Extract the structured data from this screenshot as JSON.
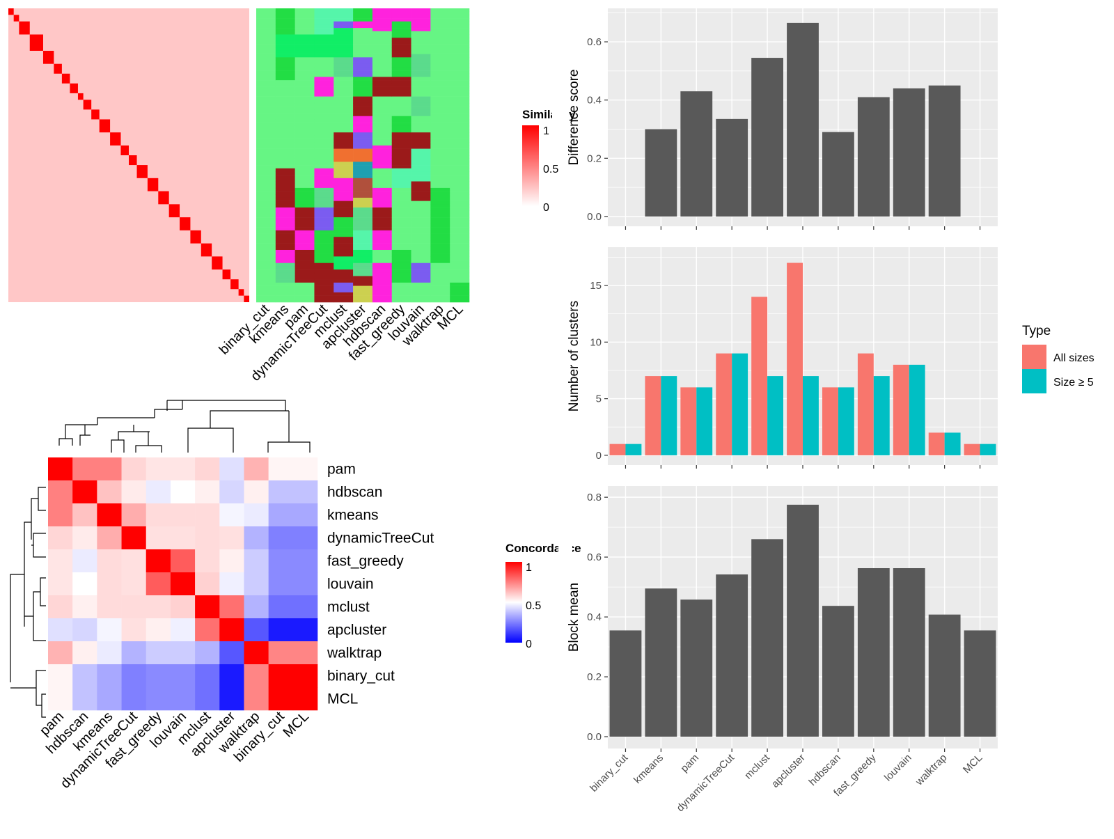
{
  "colors": {
    "sim_high": "#ff0000",
    "sim_low": "#ffffff",
    "conc_high": "#ff0000",
    "conc_mid": "#ffffff",
    "conc_low": "#0000ff",
    "panel_bg": "#ebebeb",
    "grid": "#ffffff",
    "bar": "#595959",
    "all_sizes": "#f8766d",
    "size_ge5": "#00bfc4",
    "class_default": "#66f584"
  },
  "class_palette": [
    "#66f584",
    "#22dd44",
    "#ff22dd",
    "#9b1a1a",
    "#5bdb8c",
    "#7b5cf0",
    "#ccd050",
    "#1ea0b0",
    "#b0503c",
    "#f07030",
    "#11ee66",
    "#55f5aa"
  ],
  "similarity_heatmap": {
    "legend_title": "Similarity",
    "legend_ticks": [
      "1",
      "0.5",
      "0"
    ],
    "column_labels": [
      "binary_cut",
      "kmeans",
      "pam",
      "dynamicTreeCut",
      "mclust",
      "apcluster",
      "hdbscan",
      "fast_greedy",
      "louvain",
      "walktrap",
      "MCL"
    ],
    "diagonal_blocks": [
      1,
      1,
      1,
      1,
      1,
      1,
      1,
      1,
      1,
      1,
      1,
      1,
      1,
      1,
      1,
      1,
      1,
      1,
      1,
      1,
      1,
      1,
      1,
      1,
      1,
      1,
      1,
      1,
      1,
      1,
      1,
      1,
      1,
      1,
      1,
      1,
      1,
      1,
      1,
      1,
      1,
      1,
      1,
      1,
      1,
      1,
      1,
      1,
      1,
      1,
      1,
      1,
      1,
      1,
      1,
      1,
      1,
      1,
      1,
      1,
      1,
      1,
      1,
      1,
      1,
      1,
      1,
      1,
      1,
      1,
      1,
      1,
      1,
      1,
      1,
      1,
      1,
      1,
      1,
      1,
      1,
      1,
      1,
      1,
      1,
      1,
      1,
      1,
      1,
      1
    ],
    "class_columns": [
      [
        0,
        0,
        0,
        0,
        0,
        0,
        0,
        0,
        0,
        0,
        0,
        0,
        0,
        0,
        0,
        0,
        0,
        0,
        0,
        0,
        0,
        0,
        0,
        0,
        0,
        0,
        0,
        0,
        0,
        0,
        0,
        0,
        0,
        0,
        0,
        0,
        0,
        0,
        0,
        0,
        0,
        0,
        0,
        0,
        0,
        0,
        0,
        0,
        0,
        0,
        0,
        0,
        0,
        0,
        0,
        0,
        0,
        0,
        0,
        0,
        0,
        0,
        0,
        0,
        0,
        0,
        0,
        0,
        0,
        0,
        0,
        0,
        0,
        0,
        0,
        0,
        0,
        0,
        0,
        0,
        0,
        0,
        0,
        0,
        0,
        0,
        0,
        0,
        0,
        0
      ],
      [
        1,
        1,
        1,
        1,
        1,
        1,
        1,
        1,
        10,
        10,
        10,
        10,
        10,
        10,
        10,
        1,
        1,
        1,
        1,
        1,
        1,
        1,
        0,
        0,
        0,
        0,
        0,
        0,
        0,
        0,
        0,
        0,
        0,
        0,
        0,
        0,
        0,
        0,
        0,
        0,
        0,
        0,
        0,
        0,
        0,
        0,
        0,
        0,
        0,
        3,
        3,
        3,
        3,
        3,
        3,
        3,
        3,
        3,
        3,
        3,
        3,
        2,
        2,
        2,
        2,
        2,
        2,
        2,
        3,
        3,
        3,
        3,
        3,
        3,
        2,
        2,
        2,
        2,
        4,
        4,
        4,
        4,
        4,
        4,
        0,
        0,
        0,
        0,
        0,
        0
      ],
      [
        0,
        0,
        0,
        0,
        0,
        0,
        0,
        0,
        10,
        10,
        10,
        10,
        10,
        10,
        10,
        0,
        0,
        0,
        0,
        0,
        0,
        0,
        0,
        0,
        0,
        0,
        0,
        0,
        0,
        0,
        0,
        0,
        0,
        0,
        0,
        0,
        0,
        0,
        0,
        0,
        0,
        0,
        0,
        0,
        0,
        0,
        0,
        0,
        0,
        0,
        0,
        0,
        0,
        0,
        0,
        1,
        1,
        1,
        1,
        1,
        1,
        3,
        3,
        3,
        3,
        3,
        3,
        3,
        2,
        2,
        2,
        2,
        2,
        2,
        3,
        3,
        3,
        3,
        3,
        3,
        3,
        3,
        3,
        3,
        0,
        0,
        0,
        0,
        0,
        0
      ],
      [
        11,
        11,
        11,
        11,
        11,
        11,
        11,
        11,
        10,
        10,
        10,
        10,
        10,
        10,
        10,
        0,
        0,
        0,
        0,
        0,
        0,
        2,
        2,
        2,
        2,
        2,
        2,
        0,
        0,
        0,
        0,
        0,
        0,
        0,
        0,
        0,
        0,
        0,
        0,
        0,
        0,
        0,
        0,
        0,
        0,
        0,
        0,
        0,
        0,
        2,
        2,
        2,
        2,
        2,
        2,
        4,
        4,
        4,
        4,
        4,
        4,
        5,
        5,
        5,
        5,
        5,
        5,
        5,
        1,
        1,
        1,
        1,
        1,
        1,
        1,
        1,
        1,
        1,
        3,
        3,
        3,
        3,
        3,
        3,
        3,
        3,
        3,
        3,
        3,
        3
      ],
      [
        11,
        11,
        11,
        11,
        5,
        5,
        10,
        10,
        10,
        10,
        10,
        10,
        10,
        10,
        10,
        4,
        4,
        4,
        4,
        4,
        4,
        0,
        0,
        0,
        0,
        0,
        0,
        0,
        0,
        0,
        0,
        0,
        0,
        0,
        0,
        0,
        0,
        0,
        3,
        3,
        3,
        3,
        3,
        9,
        9,
        9,
        9,
        6,
        6,
        6,
        6,
        6,
        2,
        2,
        2,
        2,
        2,
        2,
        2,
        3,
        3,
        3,
        3,
        3,
        1,
        1,
        1,
        1,
        1,
        1,
        3,
        3,
        3,
        3,
        3,
        3,
        10,
        10,
        10,
        10,
        3,
        3,
        3,
        3,
        5,
        5,
        5,
        3,
        3,
        3
      ],
      [
        1,
        1,
        1,
        1,
        2,
        2,
        0,
        0,
        0,
        0,
        0,
        0,
        0,
        0,
        0,
        5,
        5,
        5,
        5,
        5,
        5,
        1,
        1,
        1,
        1,
        1,
        1,
        3,
        3,
        3,
        3,
        3,
        3,
        2,
        2,
        2,
        2,
        2,
        5,
        5,
        5,
        5,
        5,
        9,
        9,
        9,
        9,
        7,
        7,
        7,
        7,
        7,
        8,
        8,
        8,
        8,
        8,
        8,
        6,
        6,
        6,
        4,
        4,
        4,
        4,
        4,
        4,
        4,
        11,
        11,
        11,
        11,
        11,
        11,
        10,
        10,
        10,
        10,
        4,
        4,
        4,
        4,
        3,
        3,
        3,
        6,
        6,
        6,
        6,
        6
      ],
      [
        2,
        2,
        2,
        2,
        2,
        2,
        2,
        0,
        0,
        0,
        0,
        0,
        0,
        0,
        0,
        0,
        0,
        0,
        0,
        0,
        0,
        3,
        3,
        3,
        3,
        3,
        3,
        0,
        0,
        0,
        0,
        0,
        0,
        0,
        0,
        0,
        0,
        0,
        0,
        0,
        0,
        0,
        2,
        2,
        2,
        2,
        2,
        2,
        2,
        0,
        0,
        0,
        0,
        0,
        0,
        2,
        2,
        2,
        2,
        2,
        2,
        3,
        3,
        3,
        3,
        3,
        3,
        3,
        2,
        2,
        2,
        2,
        2,
        2,
        0,
        0,
        0,
        0,
        2,
        2,
        2,
        2,
        2,
        2,
        2,
        2,
        2,
        2,
        2,
        2
      ],
      [
        2,
        2,
        2,
        2,
        1,
        1,
        1,
        1,
        1,
        3,
        3,
        3,
        3,
        3,
        3,
        1,
        1,
        1,
        1,
        1,
        1,
        3,
        3,
        3,
        3,
        3,
        3,
        0,
        0,
        0,
        0,
        0,
        0,
        1,
        1,
        1,
        1,
        1,
        3,
        3,
        3,
        3,
        3,
        3,
        3,
        3,
        3,
        3,
        3,
        11,
        11,
        11,
        11,
        11,
        11,
        0,
        0,
        0,
        0,
        0,
        0,
        0,
        0,
        0,
        0,
        0,
        0,
        0,
        0,
        0,
        0,
        0,
        0,
        0,
        1,
        1,
        1,
        1,
        1,
        1,
        1,
        1,
        1,
        1,
        0,
        0,
        0,
        0,
        0,
        0
      ],
      [
        2,
        2,
        2,
        2,
        2,
        2,
        2,
        0,
        0,
        0,
        0,
        0,
        0,
        0,
        4,
        4,
        4,
        4,
        4,
        4,
        4,
        0,
        0,
        0,
        0,
        0,
        0,
        4,
        4,
        4,
        4,
        4,
        4,
        0,
        0,
        0,
        0,
        0,
        3,
        3,
        3,
        3,
        3,
        11,
        11,
        11,
        11,
        11,
        11,
        11,
        11,
        11,
        11,
        3,
        3,
        3,
        3,
        3,
        3,
        0,
        0,
        0,
        0,
        0,
        0,
        0,
        0,
        0,
        0,
        0,
        0,
        0,
        0,
        0,
        0,
        0,
        0,
        0,
        5,
        5,
        5,
        5,
        5,
        5,
        0,
        0,
        0,
        0,
        0,
        0
      ],
      [
        0,
        0,
        0,
        0,
        0,
        0,
        0,
        0,
        0,
        0,
        0,
        0,
        0,
        0,
        0,
        0,
        0,
        0,
        0,
        0,
        0,
        0,
        0,
        0,
        0,
        0,
        0,
        0,
        0,
        0,
        0,
        0,
        0,
        0,
        0,
        0,
        0,
        0,
        0,
        0,
        0,
        0,
        0,
        0,
        0,
        0,
        0,
        0,
        0,
        0,
        0,
        0,
        0,
        0,
        0,
        1,
        1,
        1,
        1,
        1,
        1,
        1,
        1,
        1,
        1,
        1,
        1,
        1,
        1,
        1,
        1,
        1,
        1,
        1,
        1,
        1,
        1,
        1,
        0,
        0,
        0,
        0,
        0,
        0,
        0,
        0,
        0,
        0,
        0,
        0
      ],
      [
        0,
        0,
        0,
        0,
        0,
        0,
        0,
        0,
        0,
        0,
        0,
        0,
        0,
        0,
        0,
        0,
        0,
        0,
        0,
        0,
        0,
        0,
        0,
        0,
        0,
        0,
        0,
        0,
        0,
        0,
        0,
        0,
        0,
        0,
        0,
        0,
        0,
        0,
        0,
        0,
        0,
        0,
        0,
        0,
        0,
        0,
        0,
        0,
        0,
        0,
        0,
        0,
        0,
        0,
        0,
        0,
        0,
        0,
        0,
        0,
        0,
        0,
        0,
        0,
        0,
        0,
        0,
        0,
        0,
        0,
        0,
        0,
        0,
        0,
        0,
        0,
        0,
        0,
        0,
        0,
        0,
        0,
        0,
        0,
        1,
        1,
        1,
        1,
        1,
        1
      ]
    ]
  },
  "concordance_heatmap": {
    "legend_title": "Concordance",
    "legend_ticks": [
      "1",
      "0.5",
      "0"
    ],
    "labels": [
      "pam",
      "hdbscan",
      "kmeans",
      "dynamicTreeCut",
      "fast_greedy",
      "louvain",
      "mclust",
      "apcluster",
      "walktrap",
      "binary_cut",
      "MCL"
    ],
    "matrix": [
      [
        1.0,
        0.75,
        0.75,
        0.58,
        0.55,
        0.55,
        0.58,
        0.44,
        0.65,
        0.52,
        0.52
      ],
      [
        0.75,
        1.0,
        0.62,
        0.54,
        0.46,
        0.5,
        0.53,
        0.42,
        0.53,
        0.38,
        0.38
      ],
      [
        0.75,
        0.62,
        1.0,
        0.66,
        0.57,
        0.57,
        0.57,
        0.48,
        0.46,
        0.33,
        0.33
      ],
      [
        0.58,
        0.54,
        0.66,
        1.0,
        0.56,
        0.56,
        0.57,
        0.56,
        0.35,
        0.25,
        0.25
      ],
      [
        0.55,
        0.46,
        0.57,
        0.56,
        1.0,
        0.82,
        0.57,
        0.53,
        0.4,
        0.27,
        0.27
      ],
      [
        0.55,
        0.5,
        0.57,
        0.56,
        0.82,
        1.0,
        0.59,
        0.47,
        0.4,
        0.27,
        0.27
      ],
      [
        0.58,
        0.53,
        0.57,
        0.57,
        0.57,
        0.59,
        1.0,
        0.78,
        0.35,
        0.22,
        0.22
      ],
      [
        0.44,
        0.42,
        0.48,
        0.56,
        0.53,
        0.47,
        0.78,
        1.0,
        0.17,
        0.05,
        0.05
      ],
      [
        0.65,
        0.53,
        0.46,
        0.35,
        0.4,
        0.4,
        0.35,
        0.17,
        1.0,
        0.74,
        0.74
      ],
      [
        0.52,
        0.38,
        0.33,
        0.25,
        0.27,
        0.27,
        0.22,
        0.05,
        0.74,
        1.0,
        1.0
      ],
      [
        0.52,
        0.38,
        0.33,
        0.25,
        0.27,
        0.27,
        0.22,
        0.05,
        0.74,
        1.0,
        1.0
      ]
    ]
  },
  "chart_data": [
    {
      "type": "bar",
      "categories": [
        "binary_cut",
        "kmeans",
        "pam",
        "dynamicTreeCut",
        "mclust",
        "apcluster",
        "hdbscan",
        "fast_greedy",
        "louvain",
        "walktrap",
        "MCL"
      ],
      "values": [
        0,
        0.3,
        0.43,
        0.335,
        0.545,
        0.665,
        0.29,
        0.41,
        0.44,
        0.45,
        0
      ],
      "ylabel": "Difference score",
      "ylim": [
        0,
        0.7
      ],
      "yticks": [
        0.0,
        0.2,
        0.4,
        0.6
      ],
      "ytick_labels": [
        "0.0",
        "0.2",
        "0.4",
        "0.6"
      ],
      "show_x_labels": false
    },
    {
      "type": "bar",
      "categories": [
        "binary_cut",
        "kmeans",
        "pam",
        "dynamicTreeCut",
        "mclust",
        "apcluster",
        "hdbscan",
        "fast_greedy",
        "louvain",
        "walktrap",
        "MCL"
      ],
      "series": [
        {
          "name": "All sizes",
          "values": [
            1,
            7,
            6,
            9,
            14,
            17,
            6,
            9,
            8,
            2,
            1
          ]
        },
        {
          "name": "Size ≥ 5",
          "values": [
            1,
            7,
            6,
            9,
            7,
            7,
            6,
            7,
            8,
            2,
            1
          ]
        }
      ],
      "ylabel": "Number of clusters",
      "ylim": [
        0,
        18
      ],
      "yticks": [
        0,
        5,
        10,
        15
      ],
      "ytick_labels": [
        "0",
        "5",
        "10",
        "15"
      ],
      "legend_title": "Type",
      "legend_position": "right",
      "show_x_labels": false
    },
    {
      "type": "bar",
      "categories": [
        "binary_cut",
        "kmeans",
        "pam",
        "dynamicTreeCut",
        "mclust",
        "apcluster",
        "hdbscan",
        "fast_greedy",
        "louvain",
        "walktrap",
        "MCL"
      ],
      "values": [
        0.355,
        0.495,
        0.458,
        0.542,
        0.66,
        0.775,
        0.437,
        0.563,
        0.563,
        0.408,
        0.355
      ],
      "ylabel": "Block mean",
      "ylim": [
        0,
        0.82
      ],
      "yticks": [
        0.0,
        0.2,
        0.4,
        0.6,
        0.8
      ],
      "ytick_labels": [
        "0.0",
        "0.2",
        "0.4",
        "0.6",
        "0.8"
      ],
      "show_x_labels": true
    }
  ]
}
